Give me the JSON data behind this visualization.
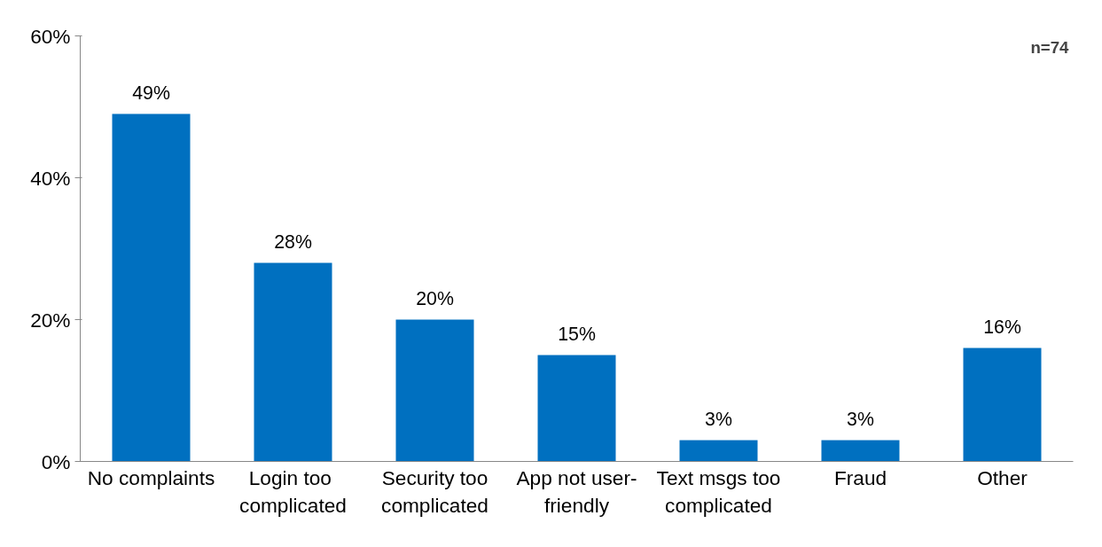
{
  "chart_data": {
    "type": "bar",
    "categories": [
      "No complaints",
      "Login  too complicated",
      "Security too complicated",
      "App not user-friendly",
      "Text msgs too complicated",
      "Fraud",
      "Other"
    ],
    "values": [
      49,
      28,
      20,
      15,
      3,
      3,
      16
    ],
    "color": "#0070c0",
    "ylim": [
      0,
      60
    ],
    "yticks": [
      {
        "value": 0,
        "label": "0%"
      },
      {
        "value": 20,
        "label": "20%"
      },
      {
        "value": 40,
        "label": "40%"
      },
      {
        "value": 60,
        "label": "60%"
      }
    ],
    "value_labels": [
      "49%",
      "28%",
      "20%",
      "15%",
      "3%",
      "3%",
      "16%"
    ],
    "annotations": [
      "n=74"
    ],
    "grid": false
  }
}
